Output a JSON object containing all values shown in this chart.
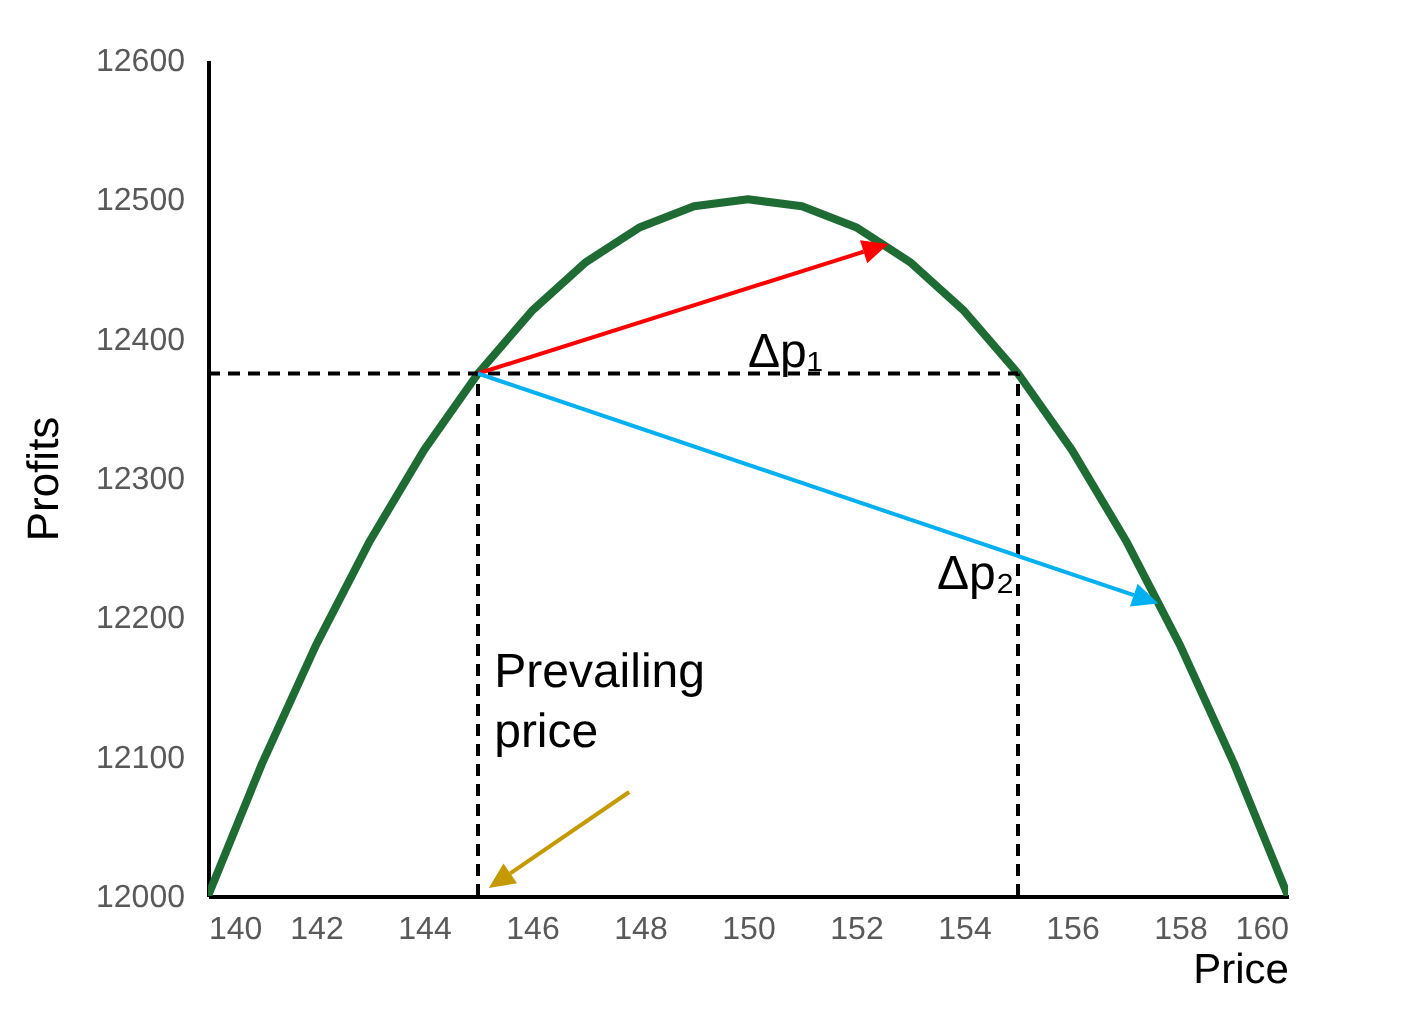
{
  "chart_data": {
    "type": "line",
    "xlabel": "Price",
    "ylabel": "Profits",
    "xlim": [
      140,
      160
    ],
    "xticks": [
      140,
      142,
      144,
      146,
      148,
      150,
      152,
      154,
      156,
      158,
      160
    ],
    "ylim": [
      12000,
      12600
    ],
    "yticks": [
      12000,
      12100,
      12200,
      12300,
      12400,
      12500,
      12600
    ],
    "grid": false,
    "marker": "none",
    "annotations": [
      "Δp₁",
      "Δp₂",
      "Prevailing price"
    ],
    "series": [
      {
        "color": "#1e6b34",
        "line_style": "solid",
        "x": [
          140,
          141,
          142,
          143,
          144,
          145,
          146,
          147,
          148,
          149,
          150,
          151,
          152,
          153,
          154,
          155,
          156,
          157,
          158,
          159,
          160
        ],
        "values": [
          12000,
          12095,
          12180,
          12255,
          12320,
          12375,
          12420,
          12455,
          12480,
          12495,
          12500,
          12495,
          12480,
          12455,
          12420,
          12375,
          12320,
          12255,
          12180,
          12095,
          12000
        ]
      },
      {
        "color": "#000000",
        "line_style": "dashed",
        "x": [
          140,
          155
        ],
        "values": [
          12375,
          12375
        ]
      },
      {
        "color": "#000000",
        "line_style": "dashed",
        "x": [
          145,
          145
        ],
        "values": [
          12000,
          12375
        ]
      },
      {
        "color": "#000000",
        "line_style": "dashed",
        "x": [
          155,
          155
        ],
        "values": [
          12000,
          12375
        ]
      }
    ]
  }
}
